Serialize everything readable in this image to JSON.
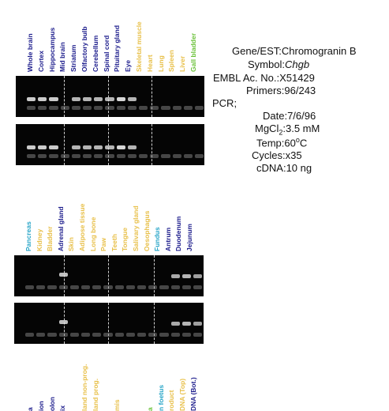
{
  "panel1": {
    "lanes": [
      {
        "label": "Whole brain",
        "color": "navy"
      },
      {
        "label": "Cortex",
        "color": "navy"
      },
      {
        "label": "Hippocampus",
        "color": "navy"
      },
      {
        "label": "Mid brain",
        "color": "navy"
      },
      {
        "label": "Striatum",
        "color": "navy"
      },
      {
        "label": "Olfactory bulb",
        "color": "navy"
      },
      {
        "label": "Cerebellum",
        "color": "navy"
      },
      {
        "label": "Spinal cord",
        "color": "navy"
      },
      {
        "label": "Pituitary gland",
        "color": "navy"
      },
      {
        "label": "Eye",
        "color": "navy"
      },
      {
        "label": "Skeletal muscle",
        "color": "yellow"
      },
      {
        "label": "Heart",
        "color": "yellow"
      },
      {
        "label": "Lung",
        "color": "yellow"
      },
      {
        "label": "Spleen",
        "color": "yellow"
      },
      {
        "label": "Liver",
        "color": "yellow"
      },
      {
        "label": "Gall bladder",
        "color": "green"
      }
    ]
  },
  "panel2": {
    "lanes": [
      {
        "label": "Pancreas",
        "color": "cyan"
      },
      {
        "label": "Kidney",
        "color": "yellow"
      },
      {
        "label": "Bladder",
        "color": "yellow"
      },
      {
        "label": "Adrenal gland",
        "color": "navy"
      },
      {
        "label": "Skin",
        "color": "yellow"
      },
      {
        "label": "Adipose tissue",
        "color": "yellow"
      },
      {
        "label": "Long bone",
        "color": "yellow"
      },
      {
        "label": "Paw",
        "color": "yellow"
      },
      {
        "label": "Teeth",
        "color": "yellow"
      },
      {
        "label": "Tongue",
        "color": "yellow"
      },
      {
        "label": "Salivary gland",
        "color": "yellow"
      },
      {
        "label": "Oesophagus",
        "color": "yellow"
      },
      {
        "label": "Fundus",
        "color": "cyan"
      },
      {
        "label": "Antrum",
        "color": "navy"
      },
      {
        "label": "Duodenum",
        "color": "navy"
      },
      {
        "label": "Jejunum",
        "color": "navy"
      }
    ]
  },
  "panel3": {
    "lanes": [
      {
        "label": "a",
        "color": "navy"
      },
      {
        "label": "ion",
        "color": "navy"
      },
      {
        "label": "olon",
        "color": "navy"
      },
      {
        "label": "ix",
        "color": "navy"
      },
      {
        "label": "",
        "color": "yellow"
      },
      {
        "label": "land non-prog.",
        "color": "yellow"
      },
      {
        "label": "land prog.",
        "color": "yellow"
      },
      {
        "label": "",
        "color": "yellow"
      },
      {
        "label": "mis",
        "color": "yellow"
      },
      {
        "label": "",
        "color": "yellow"
      },
      {
        "label": "",
        "color": "yellow"
      },
      {
        "label": "a",
        "color": "green"
      },
      {
        "label": "n foetus",
        "color": "cyan"
      },
      {
        "label": "roduct",
        "color": "yellow"
      },
      {
        "label": "DNA (Top)",
        "color": "yellow"
      },
      {
        "label": "DNA (Bot.)",
        "color": "navy"
      }
    ]
  },
  "info": {
    "gene_key": "Gene/EST:",
    "gene_val": "Chromogranin B",
    "symbol_key": "Symbol:",
    "symbol_val": "Chgb",
    "embl_key": "EMBL Ac. No.:",
    "embl_val": "X51429",
    "primers_key": "Primers:",
    "primers_val": "96/243",
    "pcr_key": "PCR;",
    "date_key": "Date:",
    "date_val": "7/6/96",
    "mgcl_key": "MgCl",
    "mgcl_sub": "2",
    "mgcl_val": ":3.5 mM",
    "temp_key": "Temp:",
    "temp_val": "60",
    "temp_sup": "o",
    "temp_unit": "C",
    "cycles_key": "Cycles:",
    "cycles_val": "x35",
    "cdna_key": "cDNA:",
    "cdna_val": "10 ng"
  },
  "colors": {
    "navy": "#1c1c8c",
    "yellow": "#e8c04a",
    "cyan": "#2aa6c8",
    "green": "#6bc23a",
    "gel": "#050505"
  }
}
